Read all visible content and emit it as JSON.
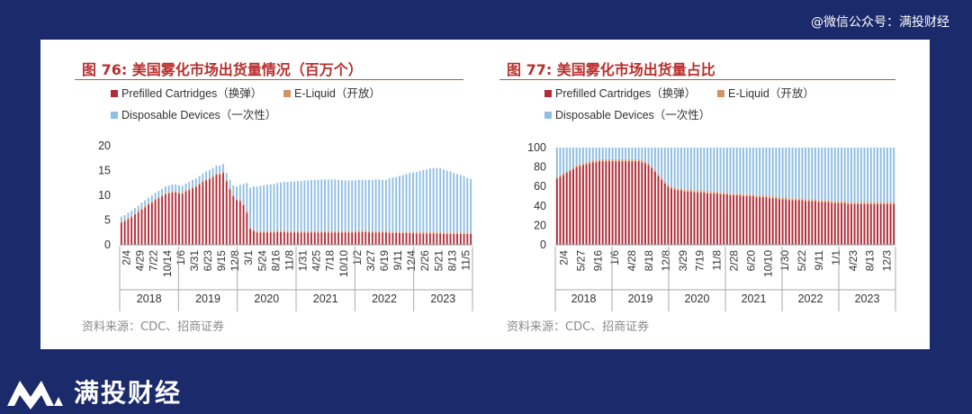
{
  "header": {
    "watermark": "@微信公众号：满投财经"
  },
  "brand": {
    "name": "满投财经",
    "icon": "mantou-logo-icon"
  },
  "colors": {
    "prefilled": "#b22d38",
    "eliquid": "#d19266",
    "disposable": "#8fbfe6",
    "title": "#b8302e",
    "background": "#1b2a6b"
  },
  "chart_data": [
    {
      "type": "bar",
      "stacked": true,
      "title": "图 76: 美国雾化市场出货量情况（百万个）",
      "legend": [
        {
          "name": "Prefilled Cartridges",
          "note": "（换弹）"
        },
        {
          "name": "E-Liquid",
          "note": "（开放）"
        },
        {
          "name": "Disposable Devices",
          "note": "（一次性）"
        }
      ],
      "legend_position": "top-left",
      "ylim": [
        0,
        20
      ],
      "yticks": [
        0,
        5,
        10,
        15,
        20
      ],
      "xticks": [
        "2/4",
        "4/29",
        "7/22",
        "10/14",
        "1/6",
        "3/31",
        "6/23",
        "9/15",
        "12/8",
        "3/1",
        "5/24",
        "8/16",
        "11/8",
        "1/31",
        "4/25",
        "7/18",
        "10/10",
        "1/2",
        "3/27",
        "6/19",
        "9/11",
        "12/4",
        "2/26",
        "5/21",
        "8/13",
        "11/5"
      ],
      "years": [
        "2018",
        "2019",
        "2020",
        "2021",
        "2022",
        "2023"
      ],
      "series": [
        {
          "name": "Prefilled Cartridges",
          "values": [
            4.5,
            4.8,
            5.2,
            5.6,
            6.1,
            6.6,
            7.1,
            7.6,
            8.1,
            8.5,
            9.0,
            9.4,
            9.8,
            10.2,
            10.4,
            10.6,
            10.6,
            10.4,
            10.3,
            10.8,
            11.0,
            11.4,
            11.7,
            12.2,
            12.7,
            13.0,
            13.3,
            13.7,
            14.2,
            14.2,
            14.5,
            12.8,
            11.2,
            9.8,
            9.0,
            8.8,
            8.0,
            6.5,
            3.2,
            2.8,
            2.5,
            2.5,
            2.5,
            2.5,
            2.5,
            2.5,
            2.6,
            2.6,
            2.6,
            2.5,
            2.5,
            2.5,
            2.5,
            2.5,
            2.5,
            2.5,
            2.5,
            2.5,
            2.5,
            2.5,
            2.5,
            2.5,
            2.5,
            2.5,
            2.5,
            2.5,
            2.5,
            2.5,
            2.5,
            2.5,
            2.6,
            2.6,
            2.6,
            2.5,
            2.5,
            2.5,
            2.5,
            2.5,
            2.5,
            2.4,
            2.4,
            2.4,
            2.4,
            2.4,
            2.4,
            2.4,
            2.4,
            2.3,
            2.3,
            2.3,
            2.3,
            2.3,
            2.3,
            2.3,
            2.3,
            2.2,
            2.2,
            2.2,
            2.2,
            2.2,
            2.2,
            2.2,
            2.2,
            2.2
          ]
        },
        {
          "name": "E-Liquid",
          "values": [
            0.3,
            0.3,
            0.3,
            0.3,
            0.3,
            0.3,
            0.3,
            0.3,
            0.3,
            0.3,
            0.3,
            0.3,
            0.3,
            0.3,
            0.3,
            0.3,
            0.3,
            0.3,
            0.3,
            0.3,
            0.3,
            0.3,
            0.3,
            0.3,
            0.3,
            0.3,
            0.3,
            0.3,
            0.3,
            0.3,
            0.3,
            0.3,
            0.3,
            0.3,
            0.3,
            0.3,
            0.3,
            0.3,
            0.3,
            0.3,
            0.3,
            0.3,
            0.3,
            0.3,
            0.3,
            0.3,
            0.3,
            0.3,
            0.3,
            0.3,
            0.3,
            0.3,
            0.3,
            0.3,
            0.3,
            0.3,
            0.3,
            0.3,
            0.3,
            0.3,
            0.3,
            0.3,
            0.3,
            0.3,
            0.3,
            0.3,
            0.3,
            0.3,
            0.3,
            0.3,
            0.3,
            0.3,
            0.3,
            0.3,
            0.3,
            0.3,
            0.3,
            0.3,
            0.3,
            0.3,
            0.3,
            0.3,
            0.3,
            0.3,
            0.3,
            0.3,
            0.3,
            0.3,
            0.3,
            0.3,
            0.3,
            0.3,
            0.3,
            0.3,
            0.3,
            0.3,
            0.3,
            0.3,
            0.3,
            0.3,
            0.3,
            0.3,
            0.3,
            0.3
          ]
        },
        {
          "name": "Disposable Devices",
          "values": [
            0.9,
            0.9,
            1.0,
            1.0,
            1.0,
            1.0,
            1.1,
            1.1,
            1.1,
            1.2,
            1.2,
            1.2,
            1.2,
            1.3,
            1.3,
            1.3,
            1.3,
            1.3,
            1.3,
            1.3,
            1.4,
            1.4,
            1.4,
            1.4,
            1.4,
            1.5,
            1.5,
            1.5,
            1.5,
            1.5,
            1.5,
            1.4,
            1.6,
            1.9,
            2.5,
            3.0,
            4.0,
            5.7,
            8.0,
            8.7,
            9.0,
            9.1,
            9.2,
            9.3,
            9.4,
            9.5,
            9.6,
            9.7,
            9.8,
            9.9,
            10.0,
            10.0,
            10.1,
            10.1,
            10.2,
            10.2,
            10.3,
            10.3,
            10.3,
            10.4,
            10.4,
            10.4,
            10.4,
            10.4,
            10.3,
            10.3,
            10.2,
            10.2,
            10.2,
            10.2,
            10.2,
            10.2,
            10.2,
            10.3,
            10.3,
            10.4,
            10.4,
            10.3,
            10.3,
            10.7,
            10.9,
            11.0,
            11.2,
            11.4,
            11.6,
            11.8,
            11.9,
            12.1,
            12.3,
            12.5,
            12.6,
            12.8,
            12.9,
            12.9,
            12.9,
            12.7,
            12.5,
            12.3,
            12.0,
            11.8,
            11.6,
            11.4,
            11.0,
            10.8
          ]
        }
      ]
    },
    {
      "type": "bar",
      "stacked": true,
      "title": "图 77: 美国雾化市场出货量占比",
      "legend": [
        {
          "name": "Prefilled Cartridges",
          "note": "（换弹）"
        },
        {
          "name": "E-Liquid",
          "note": "（开放）"
        },
        {
          "name": "Disposable Devices",
          "note": "（一次性）"
        }
      ],
      "legend_position": "top-left",
      "ylim": [
        0,
        100
      ],
      "yticks": [
        0,
        20,
        40,
        60,
        80,
        100
      ],
      "xticks": [
        "2/4",
        "5/27",
        "9/16",
        "1/6",
        "4/28",
        "8/18",
        "12/8",
        "3/29",
        "7/19",
        "11/8",
        "2/28",
        "6/20",
        "10/10",
        "1/30",
        "5/22",
        "9/11",
        "1/1",
        "4/23",
        "8/13",
        "12/3"
      ],
      "years": [
        "2018",
        "2019",
        "2020",
        "2021",
        "2022",
        "2023"
      ],
      "series": [
        {
          "name": "Prefilled Cartridges",
          "values": [
            68,
            70,
            72,
            74,
            76,
            78,
            80,
            81,
            82,
            83,
            84,
            85,
            85,
            86,
            86,
            86,
            86,
            86,
            86,
            86,
            86,
            86,
            86,
            86,
            86,
            86,
            85,
            84,
            82,
            79,
            75,
            71,
            67,
            63,
            60,
            58,
            57,
            56,
            56,
            55,
            55,
            55,
            54,
            54,
            54,
            54,
            53,
            53,
            53,
            53,
            52,
            52,
            52,
            51,
            51,
            51,
            51,
            50,
            50,
            50,
            50,
            49,
            49,
            49,
            49,
            48,
            48,
            48,
            47,
            47,
            47,
            46,
            46,
            46,
            46,
            46,
            45,
            45,
            45,
            45,
            44,
            44,
            44,
            44,
            43,
            43,
            43,
            43,
            43,
            42,
            42,
            42,
            42,
            42,
            42,
            42,
            42,
            42,
            42,
            42,
            42,
            42,
            42,
            42
          ]
        },
        {
          "name": "E-Liquid",
          "values": [
            2,
            2,
            2,
            2,
            2,
            2,
            2,
            2,
            2,
            2,
            2,
            2,
            2,
            2,
            2,
            2,
            2,
            2,
            2,
            2,
            2,
            2,
            2,
            2,
            2,
            2,
            2,
            2,
            2,
            2,
            2,
            2,
            2,
            2,
            2,
            2,
            2,
            2,
            2,
            2,
            2,
            2,
            2,
            2,
            2,
            2,
            2,
            2,
            2,
            2,
            2,
            2,
            2,
            2,
            2,
            2,
            2,
            2,
            2,
            2,
            2,
            2,
            2,
            2,
            2,
            2,
            2,
            2,
            2,
            2,
            2,
            2,
            2,
            2,
            2,
            2,
            2,
            2,
            2,
            2,
            2,
            2,
            2,
            2,
            2,
            2,
            2,
            2,
            2,
            2,
            2,
            2,
            2,
            2,
            2,
            2,
            2,
            2,
            2,
            2,
            2,
            2,
            2,
            2
          ]
        },
        {
          "name": "Disposable Devices",
          "values": [
            30,
            28,
            26,
            24,
            22,
            20,
            18,
            17,
            16,
            15,
            14,
            13,
            13,
            12,
            12,
            12,
            12,
            12,
            12,
            12,
            12,
            12,
            12,
            12,
            12,
            12,
            13,
            14,
            16,
            19,
            23,
            27,
            31,
            35,
            38,
            40,
            41,
            42,
            42,
            43,
            43,
            43,
            44,
            44,
            44,
            44,
            45,
            45,
            45,
            45,
            46,
            46,
            46,
            47,
            47,
            47,
            47,
            48,
            48,
            48,
            48,
            49,
            49,
            49,
            49,
            50,
            50,
            50,
            51,
            51,
            51,
            52,
            52,
            52,
            52,
            52,
            53,
            53,
            53,
            53,
            54,
            54,
            54,
            54,
            55,
            55,
            55,
            55,
            55,
            56,
            56,
            56,
            56,
            56,
            56,
            56,
            56,
            56,
            56,
            56,
            56,
            56,
            56,
            56
          ]
        }
      ]
    }
  ],
  "source": [
    {
      "text": "资料来源：CDC、招商证券"
    },
    {
      "text": "资料来源：CDC、招商证券"
    }
  ]
}
